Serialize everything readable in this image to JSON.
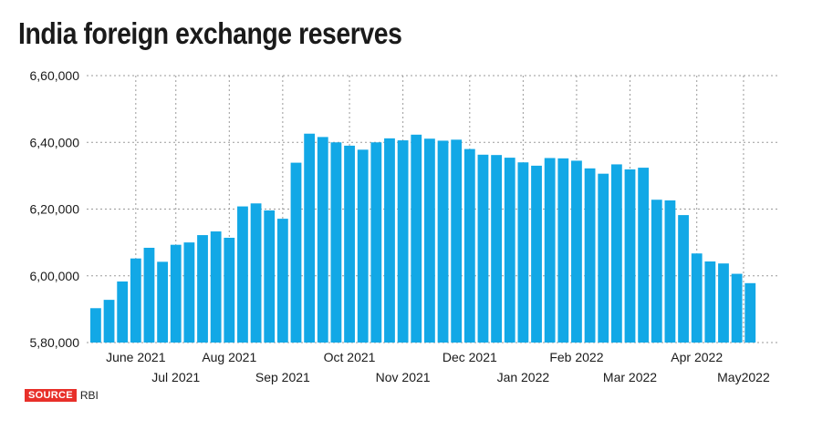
{
  "title": "India foreign exchange reserves",
  "source": {
    "tag": "SOURCE",
    "value": "RBI"
  },
  "colors": {
    "bar": "#12a8e6",
    "grid": "#9a9a9a",
    "text": "#1a1a1a",
    "source_tag": "#e8302a"
  },
  "chart_data": {
    "type": "bar",
    "title": "India foreign exchange reserves",
    "xlabel": "",
    "ylabel": "",
    "ylim": [
      580000,
      660000
    ],
    "yticks": [
      580000,
      600000,
      620000,
      640000,
      660000
    ],
    "ytick_labels": [
      "5,80,000",
      "6,00,000",
      "6,20,000",
      "6,40,000",
      "6,60,000"
    ],
    "grid": "dotted",
    "values": [
      590300,
      592800,
      598300,
      605200,
      608400,
      604200,
      609300,
      610000,
      612200,
      613300,
      611400,
      620800,
      621700,
      619600,
      617100,
      633900,
      642600,
      641600,
      640000,
      639000,
      637800,
      640000,
      641200,
      640600,
      642300,
      641100,
      640500,
      640800,
      638000,
      636300,
      636200,
      635400,
      634000,
      633000,
      635300,
      635200,
      634500,
      632200,
      630600,
      633400,
      631900,
      632400,
      622800,
      622600,
      618200,
      606700,
      604300,
      603700,
      600600,
      597800
    ],
    "x_month_labels": [
      {
        "label": "June 2021",
        "bar_index": 3,
        "row": 1
      },
      {
        "label": "Jul 2021",
        "bar_index": 6,
        "row": 2
      },
      {
        "label": "Aug 2021",
        "bar_index": 10,
        "row": 1
      },
      {
        "label": "Sep 2021",
        "bar_index": 14,
        "row": 2
      },
      {
        "label": "Oct 2021",
        "bar_index": 19,
        "row": 1
      },
      {
        "label": "Nov 2021",
        "bar_index": 23,
        "row": 2
      },
      {
        "label": "Dec 2021",
        "bar_index": 28,
        "row": 1
      },
      {
        "label": "Jan 2022",
        "bar_index": 32,
        "row": 2
      },
      {
        "label": "Feb 2022",
        "bar_index": 36,
        "row": 1
      },
      {
        "label": "Mar 2022",
        "bar_index": 40,
        "row": 2
      },
      {
        "label": "Apr 2022",
        "bar_index": 45,
        "row": 1
      },
      {
        "label": "May2022",
        "bar_index": 48.5,
        "row": 2
      }
    ]
  }
}
